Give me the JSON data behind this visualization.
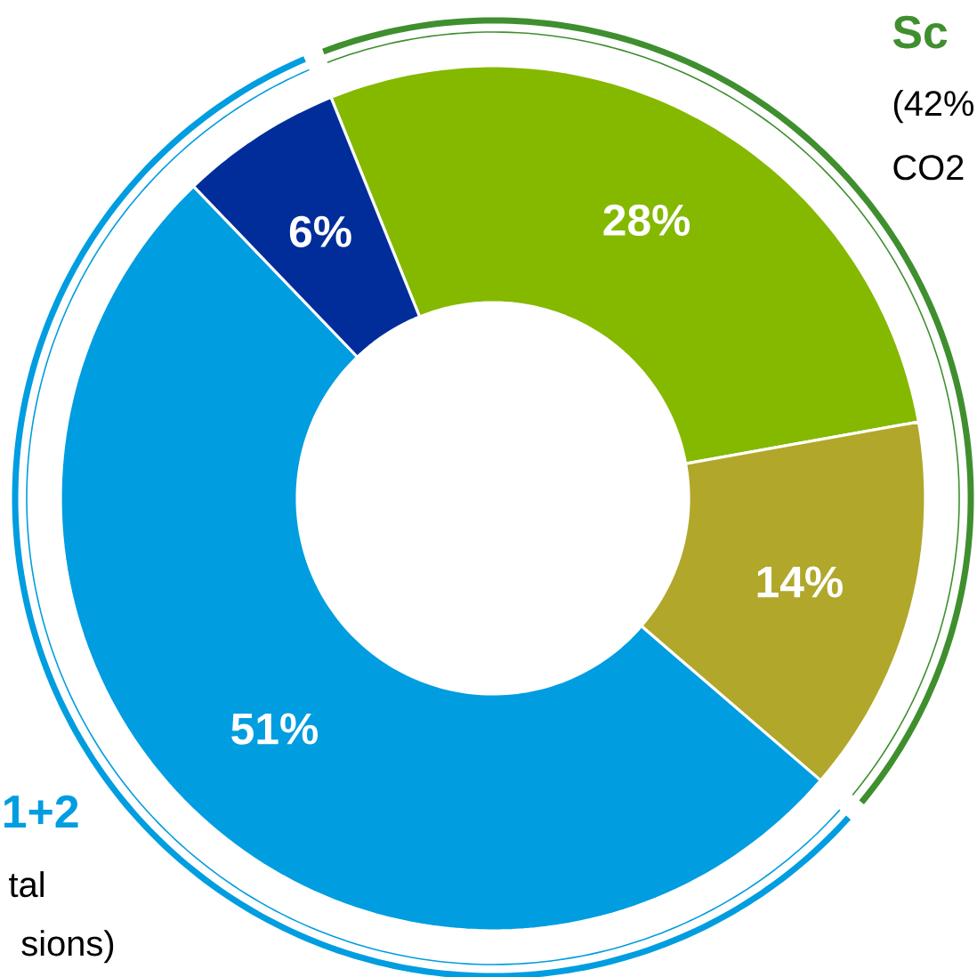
{
  "chart_data": {
    "type": "donut",
    "categories": [
      null,
      null,
      null,
      null
    ],
    "values": [
      28,
      14,
      51,
      6
    ],
    "colors": [
      "#84b900",
      "#b1a72b",
      "#009de0",
      "#002d9a"
    ],
    "value_labels": [
      "28%",
      "14%",
      "51%",
      "6%"
    ],
    "annotations": [
      "Sc",
      "(42%",
      "CO2",
      "1+2",
      "tal",
      "sions)"
    ]
  }
}
